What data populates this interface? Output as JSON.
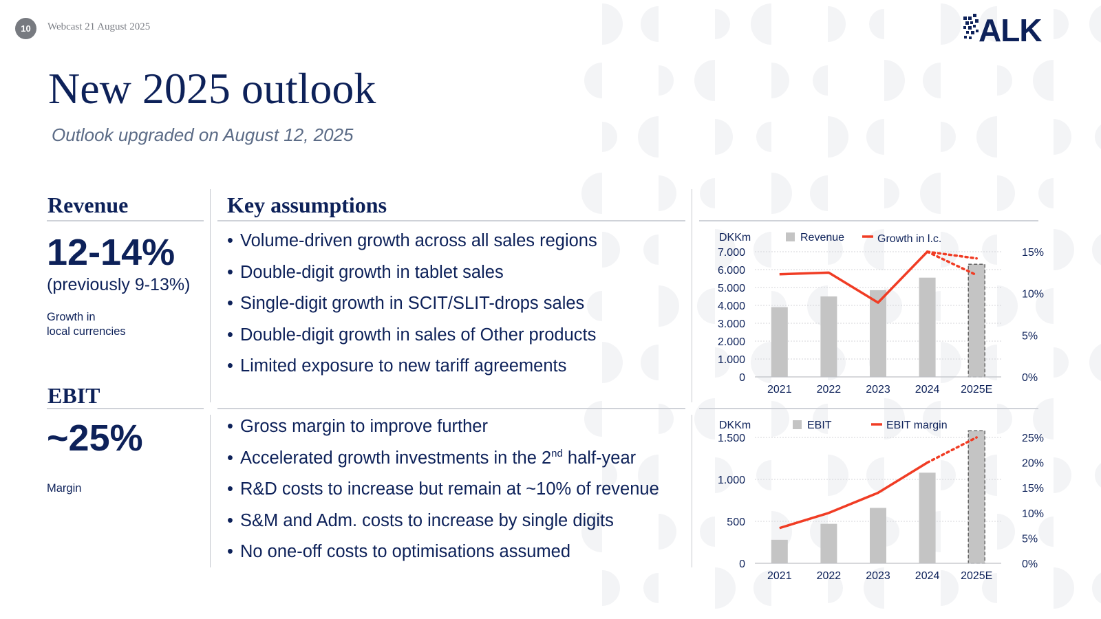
{
  "header": {
    "page_number": "10",
    "webcast": "Webcast 21 August 2025",
    "logo_text": "ALK"
  },
  "title": "New 2025 outlook",
  "subtitle": "Outlook upgraded on August 12, 2025",
  "revenue": {
    "heading": "Revenue",
    "value": "12-14%",
    "previous": "(previously 9-13%)",
    "note_line1": "Growth in",
    "note_line2": "local currencies"
  },
  "ebit": {
    "heading": "EBIT",
    "value": "~25%",
    "note": "Margin"
  },
  "key_assumptions": {
    "heading": "Key assumptions",
    "bullet_glyph": "•",
    "revenue_items": [
      "Volume-driven growth across all sales regions",
      "Double-digit growth in tablet sales",
      "Single-digit growth in SCIT/SLIT-drops sales",
      "Double-digit growth in sales of Other products",
      "Limited exposure to new tariff agreements"
    ],
    "ebit_items": [
      "Gross margin to improve further",
      "Accelerated growth investments in the 2",
      "R&D costs to increase but remain at ~10% of revenue",
      "S&M and Adm. costs to increase by single digits",
      "No one-off costs to optimisations assumed"
    ],
    "ebit_item2_sup": "nd",
    "ebit_item2_tail": " half-year"
  },
  "colors": {
    "navy": "#0d2159",
    "bar": "#c4c4c4",
    "line": "#f03c24",
    "rule": "#cfd2d8"
  },
  "chart_data": [
    {
      "type": "bar",
      "name": "revenue-chart",
      "categories": [
        "2021",
        "2022",
        "2023",
        "2024",
        "2025E"
      ],
      "series": [
        {
          "name": "Revenue",
          "type": "bar",
          "axis": "left",
          "values": [
            3900,
            4500,
            4850,
            5550,
            6300
          ]
        },
        {
          "name": "Growth in l.c.",
          "type": "line",
          "axis": "right",
          "values": [
            12.3,
            12.5,
            8.9,
            15.0,
            null
          ],
          "forecast_range": [
            14.2,
            12.2
          ]
        }
      ],
      "ylabel": "DKKm",
      "ylim": [
        0,
        7000
      ],
      "yticks": [
        0,
        1000,
        2000,
        3000,
        4000,
        5000,
        6000,
        7000
      ],
      "ytick_labels": [
        "0",
        "1.000",
        "2.000",
        "3.000",
        "4.000",
        "5.000",
        "6.000",
        "7.000"
      ],
      "y2lim": [
        0,
        15
      ],
      "y2ticks": [
        0,
        5,
        10,
        15
      ],
      "y2tick_labels": [
        "0%",
        "5%",
        "10%",
        "15%"
      ],
      "forecast_category": "2025E",
      "grid": true,
      "legend": "top"
    },
    {
      "type": "bar",
      "name": "ebit-chart",
      "categories": [
        "2021",
        "2022",
        "2023",
        "2024",
        "2025E"
      ],
      "series": [
        {
          "name": "EBIT",
          "type": "bar",
          "axis": "left",
          "values": [
            280,
            470,
            660,
            1080,
            1580
          ]
        },
        {
          "name": "EBIT margin",
          "type": "line",
          "axis": "right",
          "values": [
            7,
            10,
            14,
            20,
            25
          ]
        }
      ],
      "ylabel": "DKKm",
      "ylim": [
        0,
        1500
      ],
      "yticks": [
        0,
        500,
        1000,
        1500
      ],
      "ytick_labels": [
        "0",
        "500",
        "1.000",
        "1.500"
      ],
      "y2lim": [
        0,
        25
      ],
      "y2ticks": [
        0,
        5,
        10,
        15,
        20,
        25
      ],
      "y2tick_labels": [
        "0%",
        "5%",
        "10%",
        "15%",
        "20%",
        "25%"
      ],
      "forecast_category": "2025E",
      "grid": true,
      "legend": "top"
    }
  ]
}
